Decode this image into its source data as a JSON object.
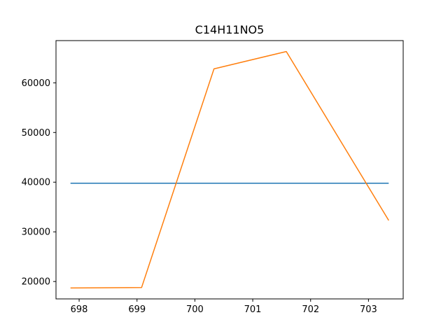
{
  "chart_data": {
    "type": "line",
    "title": "C14H11NO5",
    "xlabel": "",
    "ylabel": "",
    "xlim": [
      697.6,
      703.6
    ],
    "ylim": [
      16500,
      68500
    ],
    "xticks": [
      698,
      699,
      700,
      701,
      702,
      703
    ],
    "yticks": [
      20000,
      30000,
      40000,
      50000,
      60000
    ],
    "grid": false,
    "legend": "none",
    "series": [
      {
        "color": "#1f77b4",
        "x": [
          697.85,
          703.35
        ],
        "y": [
          39800,
          39800
        ]
      },
      {
        "color": "#ff7f0e",
        "x": [
          697.85,
          699.08,
          700.33,
          701.58,
          703.35
        ],
        "y": [
          18700,
          18800,
          62800,
          66300,
          32300
        ]
      }
    ]
  }
}
